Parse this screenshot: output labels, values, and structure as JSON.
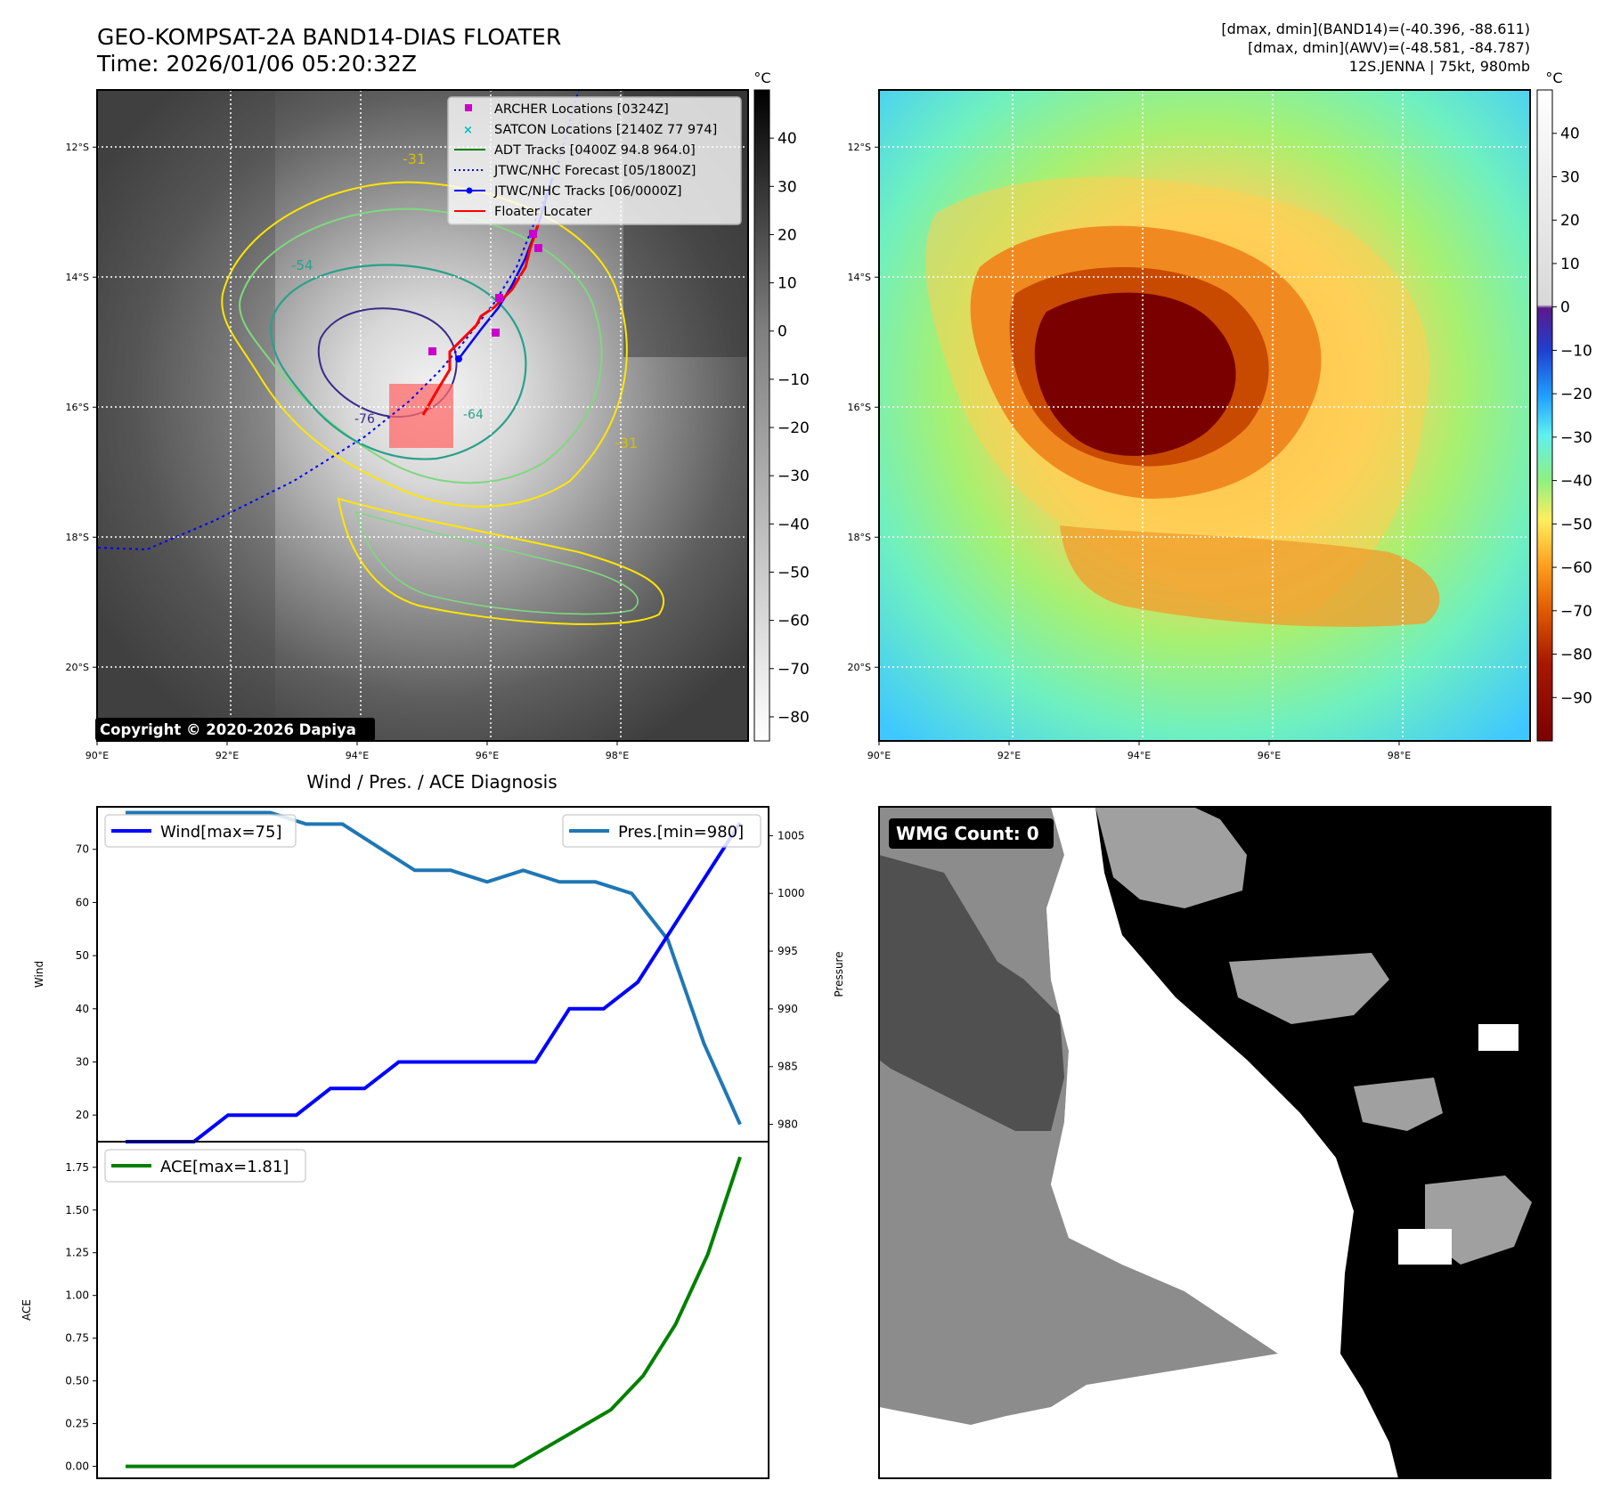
{
  "figure": {
    "title_line1": "GEO-KOMPSAT-2A BAND14-DIAS FLOATER",
    "title_line2": "Time: 2026/01/06 05:20:32Z",
    "info_line1": "[dmax, dmin](BAND14)=(-40.396, -88.611)",
    "info_line2": "[dmax, dmin](AWV)=(-48.581, -84.787)",
    "info_line3": "12S.JENNA | 75kt, 980mb",
    "copyright": "Copyright © 2020-2026 Dapiya"
  },
  "map": {
    "lat_ticks": [
      "12°S",
      "14°S",
      "16°S",
      "18°S",
      "20°S"
    ],
    "lon_ticks": [
      "90°E",
      "92°E",
      "94°E",
      "96°E",
      "98°E"
    ],
    "lat_values": [
      -12,
      -14,
      -16,
      -18,
      -20
    ],
    "lon_values": [
      90,
      92,
      94,
      96,
      98
    ],
    "contour_labels": [
      "-31",
      "-54",
      "-31",
      "-76",
      "-64"
    ]
  },
  "legend": [
    {
      "label": "ARCHER Locations [0324Z]",
      "color": "#cc00cc",
      "marker": "square"
    },
    {
      "label": "SATCON Locations [2140Z 77 974]",
      "color": "#00bfbf",
      "marker": "x"
    },
    {
      "label": "ADT Tracks [0400Z 94.8 964.0]",
      "color": "#008000",
      "marker": "line"
    },
    {
      "label": "JTWC/NHC Forecast [05/1800Z]",
      "color": "#0000ff",
      "marker": "dotted"
    },
    {
      "label": "JTWC/NHC Tracks [06/0000Z]",
      "color": "#0000ff",
      "marker": "line-dot"
    },
    {
      "label": "Floater Locater",
      "color": "#ff0000",
      "marker": "line"
    }
  ],
  "colorbar_left": {
    "unit": "°C",
    "ticks": [
      "40",
      "30",
      "20",
      "10",
      "0",
      "−10",
      "−20",
      "−30",
      "−40",
      "−50",
      "−60",
      "−70",
      "−80"
    ],
    "tick_values": [
      40,
      30,
      20,
      10,
      0,
      -10,
      -20,
      -30,
      -40,
      -50,
      -60,
      -70,
      -80
    ],
    "range": [
      50,
      -85
    ]
  },
  "colorbar_right": {
    "unit": "°C",
    "ticks": [
      "40",
      "30",
      "20",
      "10",
      "0",
      "−10",
      "−20",
      "−30",
      "−40",
      "−50",
      "−60",
      "−70",
      "−80",
      "−90"
    ],
    "tick_values": [
      40,
      30,
      20,
      10,
      0,
      -10,
      -20,
      -30,
      -40,
      -50,
      -60,
      -70,
      -80,
      -90
    ],
    "range": [
      50,
      -100
    ]
  },
  "wmg": {
    "label": "WMG Count: 0"
  },
  "colors": {
    "wind": "#0000ff",
    "pressure": "#1f77b4",
    "ace": "#008000",
    "floater": "#ff0000",
    "archer": "#cc00cc",
    "satcon": "#00bfbf"
  },
  "chart_data": [
    {
      "type": "line",
      "title": "Wind / Pres. / ACE Diagnosis",
      "ylabel": "Wind",
      "y2label": "Pressure",
      "ylim": [
        15,
        78
      ],
      "y2lim": [
        978.5,
        1007.5
      ],
      "yticks": [
        "20",
        "30",
        "40",
        "50",
        "60",
        "70"
      ],
      "ytick_values": [
        20,
        30,
        40,
        50,
        60,
        70
      ],
      "y2ticks": [
        "980",
        "985",
        "990",
        "995",
        "1000",
        "1005"
      ],
      "y2tick_values": [
        980,
        985,
        990,
        995,
        1000,
        1005
      ],
      "series": [
        {
          "name": "Wind[max=75]",
          "axis": "left",
          "values": [
            15,
            15,
            15,
            20,
            20,
            20,
            25,
            25,
            30,
            30,
            30,
            30,
            30,
            40,
            40,
            45,
            55,
            65,
            75
          ]
        },
        {
          "name": "Pres.[min=980]",
          "axis": "right",
          "values": [
            1007,
            1007,
            1007,
            1007,
            1007,
            1006,
            1006,
            1004,
            1002,
            1002,
            1001,
            1002,
            1001,
            1001,
            1000,
            996,
            987,
            980
          ]
        }
      ]
    },
    {
      "type": "line",
      "ylabel": "ACE",
      "ylim": [
        -0.07,
        1.9
      ],
      "yticks": [
        "0.00",
        "0.25",
        "0.50",
        "0.75",
        "1.00",
        "1.25",
        "1.50",
        "1.75"
      ],
      "ytick_values": [
        0,
        0.25,
        0.5,
        0.75,
        1.0,
        1.25,
        1.5,
        1.75
      ],
      "series": [
        {
          "name": "ACE[max=1.81]",
          "values": [
            0,
            0,
            0,
            0,
            0,
            0,
            0,
            0,
            0,
            0,
            0,
            0,
            0,
            0.11,
            0.22,
            0.33,
            0.53,
            0.83,
            1.24,
            1.81
          ]
        }
      ]
    }
  ]
}
